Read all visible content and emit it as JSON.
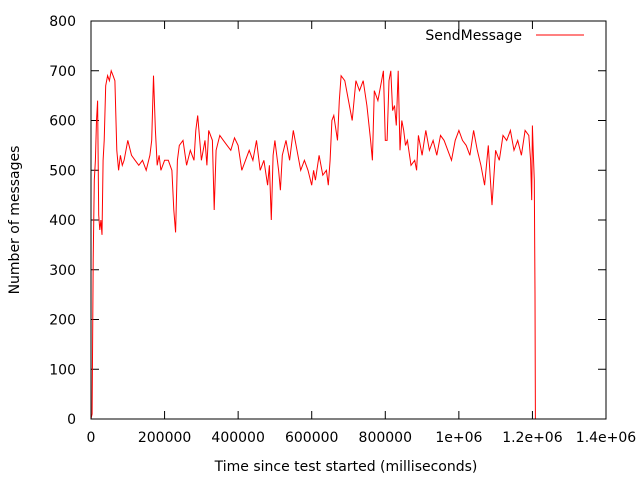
{
  "chart_data": {
    "type": "line",
    "title": "",
    "xlabel": "Time since test started (milliseconds)",
    "ylabel": "Number of messages",
    "xlim": [
      0,
      1400000
    ],
    "ylim": [
      0,
      800
    ],
    "grid": false,
    "legend_position": "top-right",
    "x_ticks": [
      {
        "value": 0,
        "label": "0"
      },
      {
        "value": 200000,
        "label": "200000"
      },
      {
        "value": 400000,
        "label": "400000"
      },
      {
        "value": 600000,
        "label": "600000"
      },
      {
        "value": 800000,
        "label": "800000"
      },
      {
        "value": 1000000,
        "label": "1e+06"
      },
      {
        "value": 1200000,
        "label": "1.2e+06"
      },
      {
        "value": 1400000,
        "label": "1.4e+06"
      }
    ],
    "y_ticks": [
      {
        "value": 0,
        "label": "0"
      },
      {
        "value": 100,
        "label": "100"
      },
      {
        "value": 200,
        "label": "200"
      },
      {
        "value": 300,
        "label": "300"
      },
      {
        "value": 400,
        "label": "400"
      },
      {
        "value": 500,
        "label": "500"
      },
      {
        "value": 600,
        "label": "600"
      },
      {
        "value": 700,
        "label": "700"
      },
      {
        "value": 800,
        "label": "800"
      }
    ],
    "series": [
      {
        "name": "SendMessage",
        "color": "#ff0000",
        "x": [
          0,
          3000,
          6000,
          9000,
          12000,
          15000,
          18000,
          21000,
          24000,
          27000,
          30000,
          33000,
          36000,
          40000,
          45000,
          50000,
          55000,
          60000,
          65000,
          70000,
          75000,
          80000,
          85000,
          90000,
          100000,
          110000,
          120000,
          130000,
          140000,
          150000,
          160000,
          165000,
          170000,
          175000,
          180000,
          185000,
          190000,
          200000,
          210000,
          220000,
          225000,
          230000,
          235000,
          240000,
          250000,
          260000,
          270000,
          280000,
          285000,
          290000,
          300000,
          310000,
          315000,
          320000,
          330000,
          335000,
          340000,
          350000,
          360000,
          370000,
          380000,
          390000,
          400000,
          410000,
          420000,
          430000,
          440000,
          450000,
          460000,
          470000,
          480000,
          485000,
          490000,
          495000,
          500000,
          510000,
          515000,
          520000,
          530000,
          540000,
          550000,
          560000,
          570000,
          580000,
          590000,
          600000,
          605000,
          610000,
          620000,
          630000,
          640000,
          645000,
          650000,
          655000,
          660000,
          670000,
          675000,
          680000,
          690000,
          700000,
          710000,
          720000,
          730000,
          740000,
          750000,
          760000,
          765000,
          770000,
          780000,
          790000,
          795000,
          800000,
          805000,
          810000,
          815000,
          820000,
          825000,
          830000,
          835000,
          840000,
          845000,
          850000,
          855000,
          860000,
          870000,
          880000,
          885000,
          890000,
          900000,
          910000,
          920000,
          930000,
          940000,
          950000,
          960000,
          970000,
          980000,
          990000,
          1000000,
          1010000,
          1020000,
          1030000,
          1040000,
          1050000,
          1060000,
          1070000,
          1080000,
          1085000,
          1090000,
          1100000,
          1110000,
          1120000,
          1130000,
          1140000,
          1150000,
          1160000,
          1170000,
          1180000,
          1190000,
          1195000,
          1198000,
          1200000,
          1202000,
          1205000,
          1207000,
          1208000,
          1209000
        ],
        "y": [
          0,
          10,
          320,
          480,
          520,
          600,
          640,
          410,
          380,
          400,
          370,
          520,
          560,
          670,
          690,
          680,
          700,
          690,
          680,
          540,
          500,
          530,
          510,
          520,
          560,
          530,
          520,
          510,
          520,
          500,
          530,
          560,
          690,
          580,
          510,
          530,
          500,
          520,
          520,
          500,
          420,
          375,
          520,
          550,
          560,
          510,
          540,
          520,
          580,
          610,
          520,
          560,
          510,
          580,
          560,
          420,
          540,
          570,
          560,
          550,
          540,
          565,
          550,
          500,
          520,
          540,
          520,
          560,
          500,
          520,
          470,
          510,
          400,
          530,
          560,
          500,
          460,
          530,
          560,
          520,
          580,
          540,
          500,
          520,
          500,
          470,
          500,
          480,
          530,
          490,
          500,
          470,
          520,
          600,
          610,
          560,
          640,
          690,
          680,
          640,
          600,
          680,
          660,
          680,
          630,
          560,
          520,
          660,
          640,
          680,
          700,
          560,
          560,
          680,
          700,
          620,
          630,
          590,
          700,
          540,
          600,
          580,
          550,
          560,
          510,
          520,
          500,
          570,
          530,
          580,
          540,
          560,
          530,
          570,
          560,
          540,
          520,
          560,
          580,
          560,
          550,
          530,
          580,
          540,
          510,
          470,
          550,
          490,
          430,
          540,
          520,
          570,
          560,
          580,
          540,
          560,
          530,
          580,
          570,
          520,
          440,
          590,
          540,
          480,
          250,
          0,
          0
        ]
      }
    ]
  }
}
